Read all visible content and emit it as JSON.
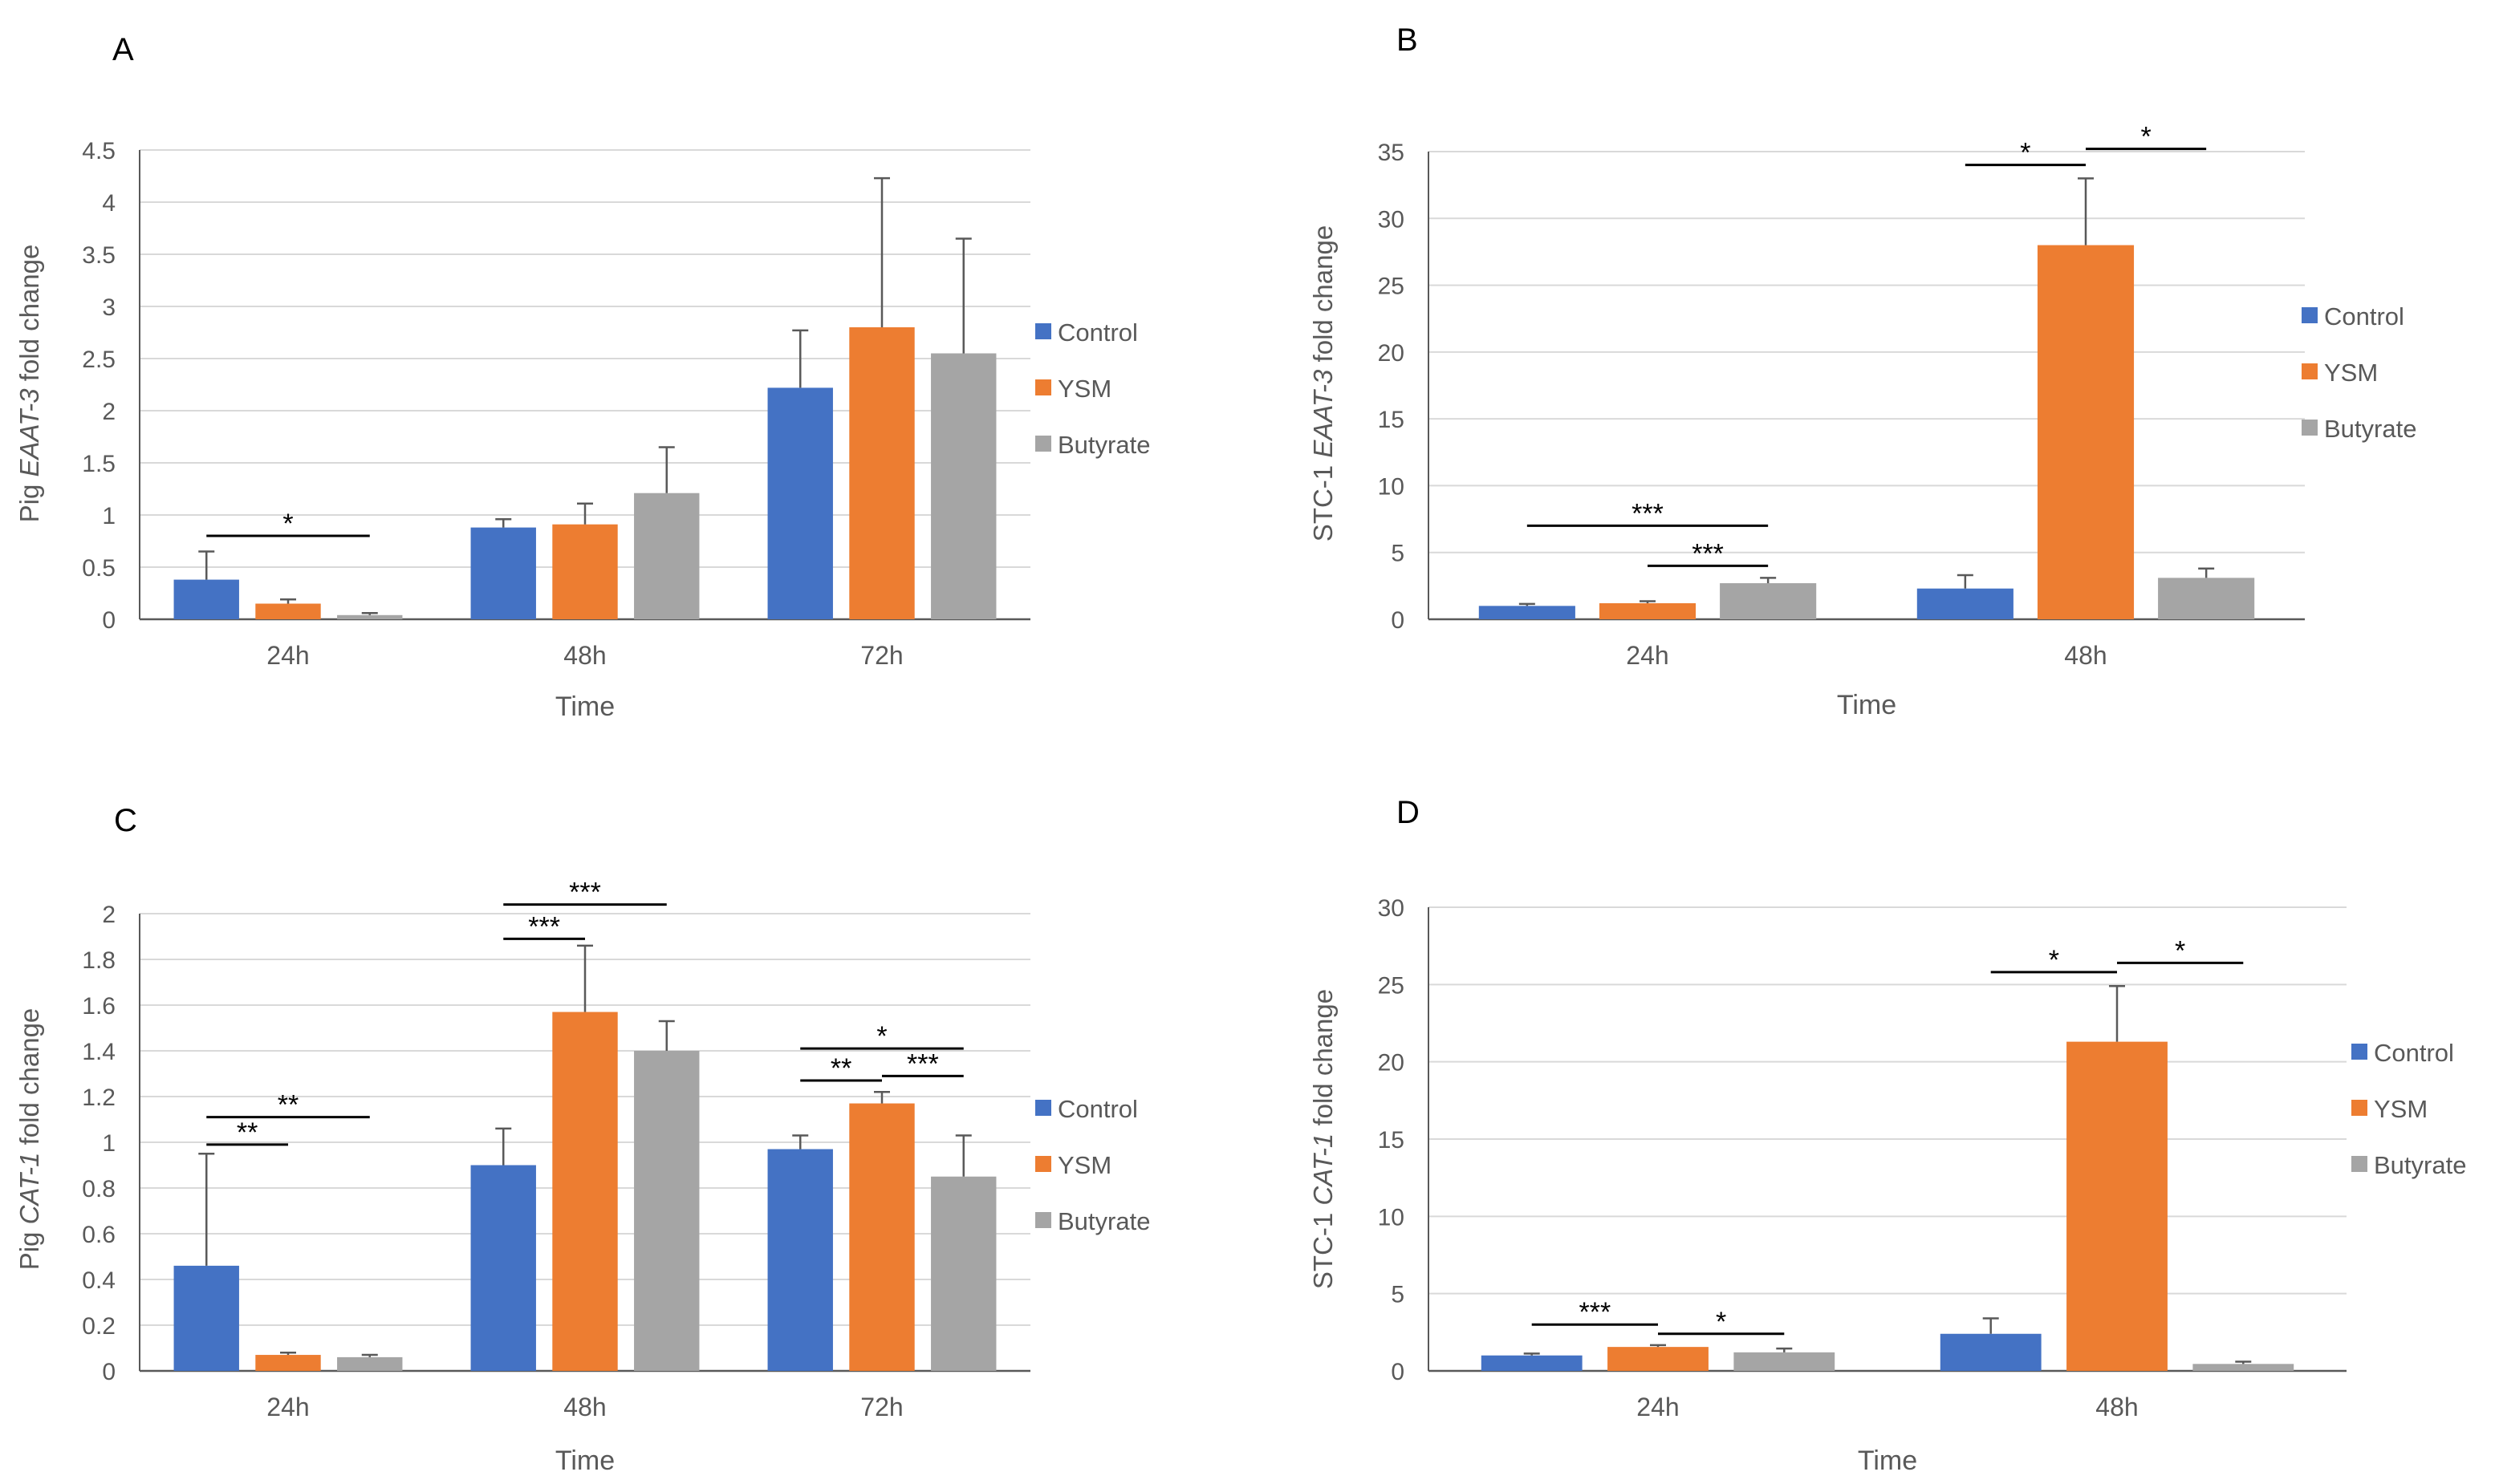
{
  "colors": {
    "Control": "#4472C4",
    "YSM": "#ED7D31",
    "Butyrate": "#A5A5A5",
    "grid": "#D9D9D9",
    "axis": "#595959",
    "text": "#595959"
  },
  "legend": [
    "Control",
    "YSM",
    "Butyrate"
  ],
  "chart_data": [
    {
      "panel": "A",
      "type": "bar",
      "title": "",
      "ylabel_prefix": "Pig ",
      "ylabel_gene": "EAAT-3",
      "ylabel_suffix": " fold change",
      "xlabel": "Time",
      "categories": [
        "24h",
        "48h",
        "72h"
      ],
      "yticks": [
        "0",
        "0.5",
        "1",
        "1.5",
        "2",
        "2.5",
        "3",
        "3.5",
        "4",
        "4.5"
      ],
      "ylim": [
        0,
        4.5
      ],
      "grid": true,
      "legend_position": "right",
      "series": [
        {
          "name": "Control",
          "values": [
            0.38,
            0.88,
            2.22
          ],
          "errors": [
            0.27,
            0.08,
            0.55
          ]
        },
        {
          "name": "YSM",
          "values": [
            0.15,
            0.91,
            2.8
          ],
          "errors": [
            0.04,
            0.2,
            1.43
          ]
        },
        {
          "name": "Butyrate",
          "values": [
            0.04,
            1.21,
            2.55
          ],
          "errors": [
            0.02,
            0.44,
            1.1
          ]
        }
      ],
      "annotations": [
        {
          "label": "*",
          "category": 0,
          "from": 0,
          "to": 2,
          "y": 0.8
        }
      ]
    },
    {
      "panel": "B",
      "type": "bar",
      "title": "",
      "ylabel_prefix": "STC-1 ",
      "ylabel_gene": "EAAT-3",
      "ylabel_suffix": " fold change",
      "xlabel": "Time",
      "categories": [
        "24h",
        "48h"
      ],
      "yticks": [
        "0",
        "5",
        "10",
        "15",
        "20",
        "25",
        "30",
        "35"
      ],
      "ylim": [
        0,
        35
      ],
      "grid": true,
      "legend_position": "right",
      "series": [
        {
          "name": "Control",
          "values": [
            1.0,
            2.3
          ],
          "errors": [
            0.15,
            1.0
          ]
        },
        {
          "name": "YSM",
          "values": [
            1.2,
            28.0
          ],
          "errors": [
            0.15,
            5.0
          ]
        },
        {
          "name": "Butyrate",
          "values": [
            2.7,
            3.1
          ],
          "errors": [
            0.4,
            0.7
          ]
        }
      ],
      "annotations": [
        {
          "label": "***",
          "category": 0,
          "from": 0,
          "to": 2,
          "y": 7.0
        },
        {
          "label": "***",
          "category": 0,
          "from": 1,
          "to": 2,
          "y": 4.0
        },
        {
          "label": "*",
          "category": 1,
          "from": 0,
          "to": 1,
          "y": 34.0
        },
        {
          "label": "*",
          "category": 1,
          "from": 1,
          "to": 2,
          "y": 35.2
        }
      ]
    },
    {
      "panel": "C",
      "type": "bar",
      "title": "",
      "ylabel_prefix": "Pig ",
      "ylabel_gene": "CAT-1",
      "ylabel_suffix": " fold change",
      "xlabel": "Time",
      "categories": [
        "24h",
        "48h",
        "72h"
      ],
      "yticks": [
        "0",
        "0.2",
        "0.4",
        "0.6",
        "0.8",
        "1",
        "1.2",
        "1.4",
        "1.6",
        "1.8",
        "2"
      ],
      "ylim": [
        0,
        2
      ],
      "grid": true,
      "legend_position": "right",
      "series": [
        {
          "name": "Control",
          "values": [
            0.46,
            0.9,
            0.97
          ],
          "errors": [
            0.49,
            0.16,
            0.06
          ]
        },
        {
          "name": "YSM",
          "values": [
            0.07,
            1.57,
            1.17
          ],
          "errors": [
            0.01,
            0.29,
            0.05
          ]
        },
        {
          "name": "Butyrate",
          "values": [
            0.06,
            1.4,
            0.85
          ],
          "errors": [
            0.01,
            0.13,
            0.18
          ]
        }
      ],
      "annotations": [
        {
          "label": "**",
          "category": 0,
          "from": 0,
          "to": 2,
          "y": 1.11
        },
        {
          "label": "**",
          "category": 0,
          "from": 0,
          "to": 1,
          "y": 0.99
        },
        {
          "label": "***",
          "category": 1,
          "from": 0,
          "to": 2,
          "y": 2.04
        },
        {
          "label": "***",
          "category": 1,
          "from": 0,
          "to": 1,
          "y": 1.89
        },
        {
          "label": "*",
          "category": 2,
          "from": 0,
          "to": 2,
          "y": 1.41
        },
        {
          "label": "**",
          "category": 2,
          "from": 0,
          "to": 1,
          "y": 1.27
        },
        {
          "label": "***",
          "category": 2,
          "from": 1,
          "to": 2,
          "y": 1.29
        }
      ]
    },
    {
      "panel": "D",
      "type": "bar",
      "title": "",
      "ylabel_prefix": "STC-1 ",
      "ylabel_gene": "CAT-1",
      "ylabel_suffix": " fold change",
      "xlabel": "Time",
      "categories": [
        "24h",
        "48h"
      ],
      "yticks": [
        "0",
        "5",
        "10",
        "15",
        "20",
        "25",
        "30"
      ],
      "ylim": [
        0,
        30
      ],
      "grid": true,
      "legend_position": "right",
      "series": [
        {
          "name": "Control",
          "values": [
            1.0,
            2.4
          ],
          "errors": [
            0.12,
            1.0
          ]
        },
        {
          "name": "YSM",
          "values": [
            1.55,
            21.3
          ],
          "errors": [
            0.12,
            3.6
          ]
        },
        {
          "name": "Butyrate",
          "values": [
            1.2,
            0.45
          ],
          "errors": [
            0.25,
            0.15
          ]
        }
      ],
      "annotations": [
        {
          "label": "***",
          "category": 0,
          "from": 0,
          "to": 1,
          "y": 3.0
        },
        {
          "label": "*",
          "category": 0,
          "from": 1,
          "to": 2,
          "y": 2.4
        },
        {
          "label": "*",
          "category": 1,
          "from": 0,
          "to": 1,
          "y": 25.8
        },
        {
          "label": "*",
          "category": 1,
          "from": 1,
          "to": 2,
          "y": 26.4
        }
      ]
    }
  ]
}
